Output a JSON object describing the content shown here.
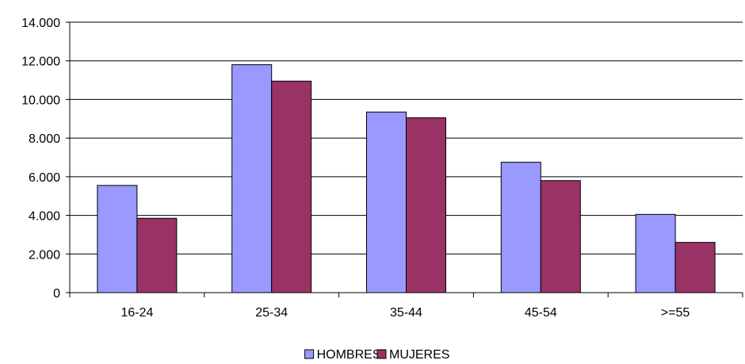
{
  "chart_data": {
    "type": "bar",
    "title": "",
    "xlabel": "",
    "ylabel": "",
    "categories": [
      "16-24",
      "25-34",
      "35-44",
      "45-54",
      ">=55"
    ],
    "series": [
      {
        "name": "HOMBRES",
        "color": "#9999ff",
        "values": [
          5550,
          11800,
          9350,
          6750,
          4050
        ]
      },
      {
        "name": "MUJERES",
        "color": "#993366",
        "values": [
          3850,
          10950,
          9050,
          5800,
          2600
        ]
      }
    ],
    "ylim": [
      0,
      14000
    ],
    "y_ticks": [
      0,
      2000,
      4000,
      6000,
      8000,
      10000,
      12000,
      14000
    ],
    "y_tick_labels": [
      "0",
      "2.000",
      "4.000",
      "6.000",
      "8.000",
      "10.000",
      "12.000",
      "14.000"
    ],
    "grid": true,
    "legend_position": "bottom"
  }
}
